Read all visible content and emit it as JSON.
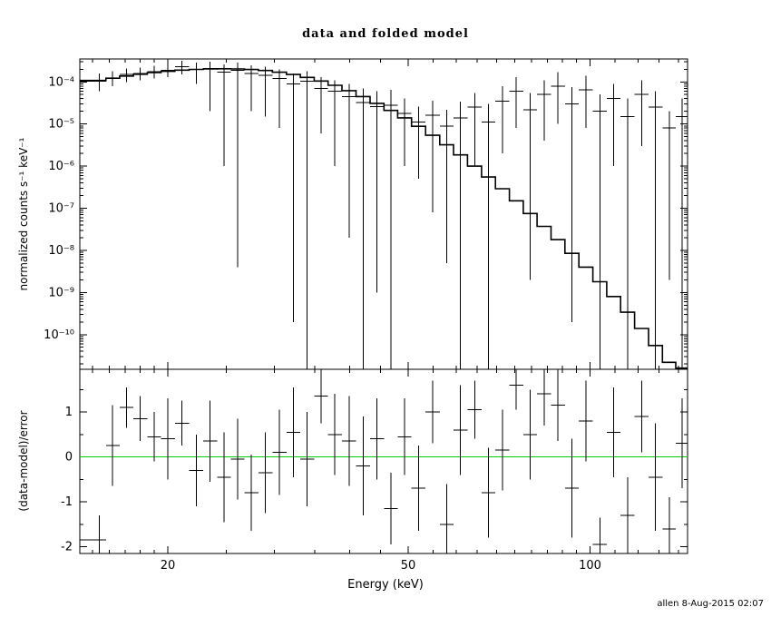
{
  "footer": "allen  8-Aug-2015 02:07",
  "colors": {
    "foreground": "#000000",
    "background": "#ffffff",
    "zero_line_green": "#00cc00"
  },
  "chart_data": [
    {
      "type": "line",
      "panel": "top",
      "title": "data and folded model",
      "xlabel": "Energy (keV)",
      "ylabel": "normalized counts s⁻¹ keV⁻¹",
      "xscale": "log",
      "yscale": "log",
      "xlim": [
        14.3,
        145
      ],
      "ylim": [
        1.5e-11,
        0.00035
      ],
      "x_major_ticks": [
        20,
        50,
        100
      ],
      "x_minor_ticks": [
        15,
        16,
        17,
        18,
        19,
        25,
        30,
        35,
        40,
        45,
        55,
        60,
        65,
        70,
        75,
        80,
        85,
        90,
        95,
        110,
        120,
        130,
        140
      ],
      "y_tick_exponents": [
        -10,
        -9,
        -8,
        -7,
        -6,
        -5,
        -4
      ],
      "grid": false,
      "legend": false,
      "model": {
        "name": "folded model",
        "x": [
          15.4,
          16.2,
          17.1,
          18.0,
          19.0,
          20.0,
          21.1,
          22.3,
          23.5,
          24.8,
          26.1,
          27.5,
          29.0,
          30.6,
          32.3,
          34.0,
          35.9,
          37.8,
          39.9,
          42.1,
          44.4,
          46.8,
          49.3,
          52.0,
          54.9,
          57.9,
          61.0,
          64.4,
          67.9,
          71.6,
          75.5,
          79.6,
          83.9,
          88.5,
          93.3,
          98.4,
          103.8,
          109.4,
          115.4,
          121.7,
          128.3,
          135.3,
          142.0
        ],
        "y": [
          0.000108,
          0.000122,
          0.000138,
          0.000152,
          0.000166,
          0.000178,
          0.00019,
          0.000198,
          0.000203,
          0.000205,
          0.000203,
          0.000197,
          0.000186,
          0.00017,
          0.00015,
          0.000128,
          0.000105,
          8.3e-05,
          6.2e-05,
          4.5e-05,
          3.1e-05,
          2.1e-05,
          1.4e-05,
          8.8e-06,
          5.4e-06,
          3.2e-06,
          1.85e-06,
          1e-06,
          5.5e-07,
          2.9e-07,
          1.5e-07,
          7.5e-08,
          3.7e-08,
          1.8e-08,
          8.5e-09,
          4e-09,
          1.8e-09,
          8e-10,
          3.4e-10,
          1.4e-10,
          5.5e-11,
          2.2e-11,
          1.6e-11
        ]
      },
      "data_points": {
        "name": "data",
        "x": [
          15.4,
          16.2,
          17.1,
          18.0,
          19.0,
          20.0,
          21.1,
          22.3,
          23.5,
          24.8,
          26.1,
          27.5,
          29.0,
          30.6,
          32.3,
          34.0,
          35.9,
          37.8,
          39.9,
          42.1,
          44.4,
          46.8,
          49.3,
          52.0,
          54.9,
          57.9,
          61.0,
          64.4,
          67.9,
          71.6,
          75.5,
          79.6,
          83.9,
          88.5,
          93.3,
          98.4,
          103.8,
          109.4,
          115.4,
          121.7,
          128.3,
          135.3,
          142.0
        ],
        "y": [
          0.000105,
          0.000125,
          0.00015,
          0.00016,
          0.000175,
          0.00019,
          0.00023,
          0.0002,
          0.00021,
          0.00017,
          0.00019,
          0.00016,
          0.000145,
          0.00012,
          9e-05,
          0.000105,
          7e-05,
          6e-05,
          4.5e-05,
          3.2e-05,
          2.6e-05,
          2.8e-05,
          1.8e-05,
          1.1e-05,
          1.6e-05,
          9e-06,
          1.4e-05,
          2.5e-05,
          1.1e-05,
          3.5e-05,
          6e-05,
          2.2e-05,
          5e-05,
          8e-05,
          3e-05,
          6.5e-05,
          2e-05,
          4e-05,
          1.5e-05,
          5e-05,
          2.5e-05,
          8e-06,
          1.5e-05
        ],
        "ylo": [
          6e-05,
          8e-05,
          0.0001,
          0.00011,
          0.00012,
          0.00013,
          0.00015,
          9e-05,
          2e-05,
          1e-06,
          4e-09,
          2e-05,
          1.5e-05,
          8e-06,
          2e-10,
          1.5e-11,
          6e-06,
          1e-06,
          2e-08,
          1.5e-11,
          1e-09,
          1.5e-11,
          1e-06,
          5e-07,
          8e-08,
          5e-09,
          1.5e-11,
          1e-06,
          1.5e-11,
          2e-06,
          8e-06,
          2e-09,
          4e-06,
          1e-05,
          2e-10,
          8e-06,
          1.5e-11,
          1e-06,
          1.5e-11,
          3e-06,
          1.5e-11,
          2e-09,
          1.5e-11
        ],
        "yhi": [
          0.00016,
          0.00018,
          0.00021,
          0.00022,
          0.00024,
          0.00026,
          0.00032,
          0.00029,
          0.0003,
          0.00026,
          0.00029,
          0.00025,
          0.00023,
          0.0002,
          0.00016,
          0.00018,
          0.00013,
          0.00011,
          9e-05,
          7e-05,
          6e-05,
          6.5e-05,
          4e-05,
          2.6e-05,
          3.6e-05,
          2.2e-05,
          3.4e-05,
          5.5e-05,
          3e-05,
          8e-05,
          0.00013,
          5.5e-05,
          0.00011,
          0.00017,
          7.5e-05,
          0.00014,
          5e-05,
          9e-05,
          4e-05,
          0.00011,
          6e-05,
          2e-05,
          4e-05
        ]
      }
    },
    {
      "type": "scatter",
      "panel": "bottom",
      "ylabel": "(data-model)/error",
      "xscale": "log",
      "yscale": "linear",
      "xlim": [
        14.3,
        145
      ],
      "ylim": [
        -2.15,
        1.95
      ],
      "y_major_ticks": [
        -2,
        -1,
        0,
        1
      ],
      "y_minor_ticks": [
        -1.5,
        -0.5,
        0.5,
        1.5
      ],
      "zero_line": 0,
      "points": {
        "name": "residuals",
        "x": [
          15.4,
          16.2,
          17.1,
          18.0,
          19.0,
          20.0,
          21.1,
          22.3,
          23.5,
          24.8,
          26.1,
          27.5,
          29.0,
          30.6,
          32.3,
          34.0,
          35.9,
          37.8,
          39.9,
          42.1,
          44.4,
          46.8,
          49.3,
          52.0,
          54.9,
          57.9,
          61.0,
          64.4,
          67.9,
          71.6,
          75.5,
          79.6,
          83.9,
          88.5,
          93.3,
          98.4,
          103.8,
          109.4,
          115.4,
          121.7,
          128.3,
          135.3,
          142.0
        ],
        "y": [
          -1.85,
          0.25,
          1.1,
          0.85,
          0.45,
          0.4,
          0.75,
          -0.3,
          0.35,
          -0.45,
          -0.05,
          -0.8,
          -0.35,
          0.1,
          0.55,
          -0.05,
          1.35,
          0.5,
          0.35,
          -0.2,
          0.4,
          -1.15,
          0.45,
          -0.7,
          1.0,
          -1.5,
          0.6,
          1.05,
          -0.8,
          0.15,
          1.6,
          0.5,
          1.4,
          1.15,
          -0.7,
          0.8,
          -1.95,
          0.55,
          -1.3,
          0.9,
          -0.45,
          -1.6,
          0.3
        ],
        "err": [
          0.55,
          0.9,
          0.45,
          0.5,
          0.55,
          0.9,
          0.5,
          0.8,
          0.9,
          1.0,
          0.9,
          0.85,
          0.9,
          0.95,
          1.0,
          1.05,
          0.6,
          0.9,
          1.0,
          1.1,
          0.9,
          0.8,
          0.85,
          0.95,
          0.7,
          0.9,
          1.0,
          0.65,
          1.0,
          0.9,
          0.55,
          1.0,
          0.7,
          0.8,
          1.1,
          0.9,
          0.6,
          1.0,
          0.85,
          0.8,
          1.2,
          0.7,
          1.0
        ]
      }
    }
  ]
}
